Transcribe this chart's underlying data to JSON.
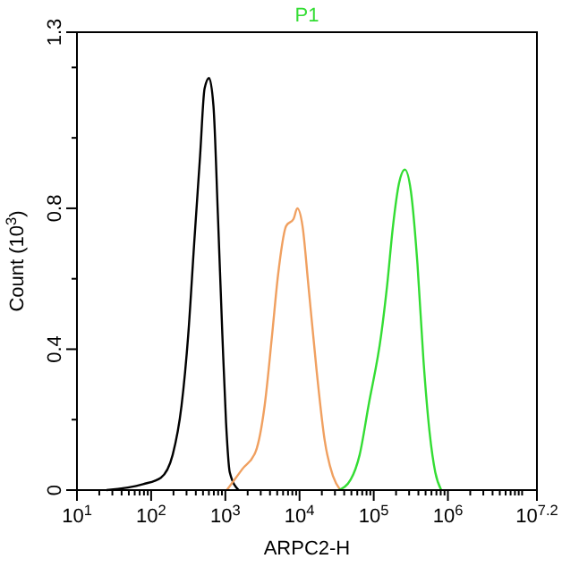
{
  "chart_data": {
    "type": "line",
    "xlabel": "ARPC2-H",
    "ylabel": "Count (10$^{3}$)",
    "log": "x",
    "legend": "top",
    "line_style": "solid",
    "grid": false,
    "xlim": [
      10,
      15848932
    ],
    "xticks": [
      {
        "value": 10,
        "label": "10$^{1}$"
      },
      {
        "value": 20,
        "label": null
      },
      {
        "value": 30,
        "label": null
      },
      {
        "value": 40,
        "label": null
      },
      {
        "value": 50,
        "label": null
      },
      {
        "value": 60,
        "label": null
      },
      {
        "value": 70,
        "label": null
      },
      {
        "value": 80,
        "label": null
      },
      {
        "value": 90,
        "label": null
      },
      {
        "value": 100,
        "label": "10$^{2}$"
      },
      {
        "value": 200,
        "label": null
      },
      {
        "value": 300,
        "label": null
      },
      {
        "value": 400,
        "label": null
      },
      {
        "value": 500,
        "label": null
      },
      {
        "value": 600,
        "label": null
      },
      {
        "value": 700,
        "label": null
      },
      {
        "value": 800,
        "label": null
      },
      {
        "value": 900,
        "label": null
      },
      {
        "value": 1000,
        "label": "10$^{3}$"
      },
      {
        "value": 2000,
        "label": null
      },
      {
        "value": 3000,
        "label": null
      },
      {
        "value": 4000,
        "label": null
      },
      {
        "value": 5000,
        "label": null
      },
      {
        "value": 6000,
        "label": null
      },
      {
        "value": 7000,
        "label": null
      },
      {
        "value": 8000,
        "label": null
      },
      {
        "value": 9000,
        "label": null
      },
      {
        "value": 10000,
        "label": "10$^{4}$"
      },
      {
        "value": 20000,
        "label": null
      },
      {
        "value": 30000,
        "label": null
      },
      {
        "value": 40000,
        "label": null
      },
      {
        "value": 50000,
        "label": null
      },
      {
        "value": 60000,
        "label": null
      },
      {
        "value": 70000,
        "label": null
      },
      {
        "value": 80000,
        "label": null
      },
      {
        "value": 90000,
        "label": null
      },
      {
        "value": 100000,
        "label": "10$^{5}$"
      },
      {
        "value": 200000,
        "label": null
      },
      {
        "value": 300000,
        "label": null
      },
      {
        "value": 400000,
        "label": null
      },
      {
        "value": 500000,
        "label": null
      },
      {
        "value": 600000,
        "label": null
      },
      {
        "value": 700000,
        "label": null
      },
      {
        "value": 800000,
        "label": null
      },
      {
        "value": 900000,
        "label": null
      },
      {
        "value": 1000000,
        "label": "10$^{6}$"
      },
      {
        "value": 2000000,
        "label": null
      },
      {
        "value": 3000000,
        "label": null
      },
      {
        "value": 4000000,
        "label": null
      },
      {
        "value": 5000000,
        "label": null
      },
      {
        "value": 6000000,
        "label": null
      },
      {
        "value": 7000000,
        "label": null
      },
      {
        "value": 8000000,
        "label": null
      },
      {
        "value": 9000000,
        "label": null
      },
      {
        "value": 10000000,
        "label": null
      },
      {
        "value": 15848932,
        "label": "10$^{7.2}$"
      }
    ],
    "ylim": [
      0,
      1.3
    ],
    "yticks": [
      0,
      {
        "value": 0.2,
        "label": null
      },
      0.4,
      {
        "value": 0.6,
        "label": null
      },
      0.8,
      {
        "value": 1.0,
        "label": null
      },
      {
        "value": 1.2,
        "label": null
      },
      1.3
    ],
    "series": [
      {
        "color": "#000000",
        "x": [
          25,
          78,
          135,
          195,
          257,
          316,
          380,
          457,
          525,
          603,
          692,
          794,
          912,
          1023,
          1148,
          1514
        ],
        "values": [
          0,
          0.017,
          0.035,
          0.1,
          0.24,
          0.44,
          0.7,
          0.95,
          1.14,
          1.17,
          1.09,
          0.78,
          0.44,
          0.19,
          0.05,
          0
        ]
      },
      {
        "color": "#f0a060",
        "x": [
          1047,
          1698,
          2570,
          3388,
          4266,
          5129,
          6607,
          8318,
          9333,
          10965,
          13183,
          16982,
          21878,
          28184,
          35481
        ],
        "values": [
          0,
          0.06,
          0.11,
          0.24,
          0.44,
          0.61,
          0.75,
          0.77,
          0.8,
          0.75,
          0.58,
          0.34,
          0.14,
          0.04,
          0
        ]
      },
      {
        "name": "P1",
        "color": "#33dd33",
        "x": [
          33884,
          48978,
          64565,
          85114,
          125893,
          151356,
          181970,
          218776,
          263027,
          316228,
          389045,
          467735,
          562341,
          676083,
          812831
        ],
        "values": [
          0,
          0.03,
          0.1,
          0.24,
          0.44,
          0.58,
          0.75,
          0.87,
          0.91,
          0.85,
          0.64,
          0.37,
          0.17,
          0.05,
          0
        ]
      }
    ]
  }
}
